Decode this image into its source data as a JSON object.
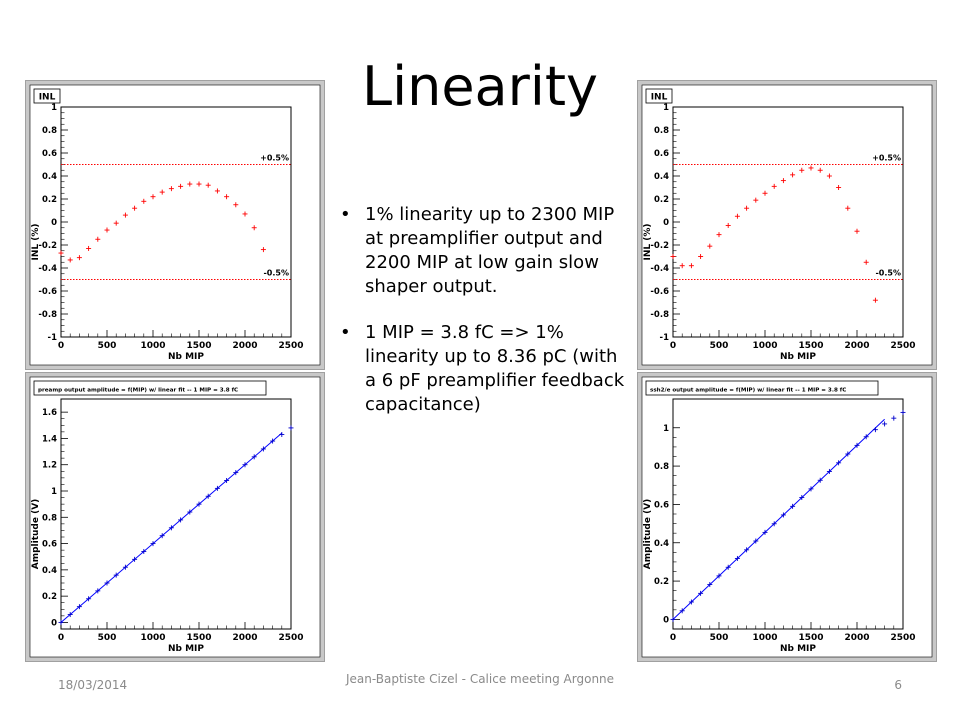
{
  "slide": {
    "title": "Linearity",
    "bullets": [
      "1% linearity up to 2300 MIP at preamplifier output and 2200 MIP at low gain slow shaper output.",
      "1 MIP = 3.8 fC => 1% linearity up to 8.36 pC (with a 6 pF preamplifier feedback capacitance)"
    ],
    "footer": {
      "date": "18/03/2014",
      "center": "Jean-Baptiste Cizel - Calice meeting Argonne",
      "page": "6"
    }
  },
  "chart_data": [
    {
      "type": "scatter",
      "title": "INL",
      "xlabel": "Nb MIP",
      "ylabel": "INL (%)",
      "xlim": [
        0,
        2500
      ],
      "ylim": [
        -1,
        1
      ],
      "xticks": [
        0,
        500,
        1000,
        1500,
        2000,
        2500
      ],
      "yticks": [
        -1,
        -0.8,
        -0.6,
        -0.4,
        -0.2,
        0,
        0.2,
        0.4,
        0.6,
        0.8,
        1
      ],
      "ytick_labels": [
        "-1",
        "-0.8",
        "-0.6",
        "-0.4",
        "-0.2",
        "0",
        "0.2",
        "0.4",
        "0.6",
        "0.8",
        "1"
      ],
      "marker_color": "#ff0000",
      "line_color": "#ff0000",
      "hlines": [
        {
          "y": 0.5,
          "label": "+0.5%"
        },
        {
          "y": -0.5,
          "label": "-0.5%"
        }
      ],
      "x": [
        0,
        100,
        200,
        300,
        400,
        500,
        600,
        700,
        800,
        900,
        1000,
        1100,
        1200,
        1300,
        1400,
        1500,
        1600,
        1700,
        1800,
        1900,
        2000,
        2100,
        2200
      ],
      "y": [
        -0.27,
        -0.33,
        -0.31,
        -0.23,
        -0.15,
        -0.07,
        -0.01,
        0.06,
        0.12,
        0.18,
        0.22,
        0.26,
        0.29,
        0.31,
        0.33,
        0.33,
        0.32,
        0.27,
        0.22,
        0.15,
        0.07,
        -0.05,
        -0.24
      ]
    },
    {
      "type": "scatter",
      "title": "INL",
      "xlabel": "Nb MIP",
      "ylabel": "INL (%)",
      "xlim": [
        0,
        2500
      ],
      "ylim": [
        -1,
        1
      ],
      "xticks": [
        0,
        500,
        1000,
        1500,
        2000,
        2500
      ],
      "yticks": [
        -1,
        -0.8,
        -0.6,
        -0.4,
        -0.2,
        0,
        0.2,
        0.4,
        0.6,
        0.8,
        1
      ],
      "ytick_labels": [
        "-1",
        "-0.8",
        "-0.6",
        "-0.4",
        "-0.2",
        "0",
        "0.2",
        "0.4",
        "0.6",
        "0.8",
        "1"
      ],
      "marker_color": "#ff0000",
      "line_color": "#ff0000",
      "hlines": [
        {
          "y": 0.5,
          "label": "+0.5%"
        },
        {
          "y": -0.5,
          "label": "-0.5%"
        }
      ],
      "x": [
        0,
        100,
        200,
        300,
        400,
        500,
        600,
        700,
        800,
        900,
        1000,
        1100,
        1200,
        1300,
        1400,
        1500,
        1600,
        1700,
        1800,
        1900,
        2000,
        2100,
        2200
      ],
      "y": [
        -0.3,
        -0.38,
        -0.38,
        -0.3,
        -0.21,
        -0.11,
        -0.03,
        0.05,
        0.12,
        0.19,
        0.25,
        0.31,
        0.36,
        0.41,
        0.45,
        0.47,
        0.45,
        0.4,
        0.3,
        0.12,
        -0.08,
        -0.35,
        -0.68
      ]
    },
    {
      "type": "scatter",
      "title": "preamp output amplitude = f(MIP) w/ linear fit -- 1 MIP = 3.8 fC",
      "xlabel": "Nb MIP",
      "ylabel": "Amplitude (V)",
      "xlim": [
        0,
        2500
      ],
      "ylim": [
        -0.05,
        1.7
      ],
      "xticks": [
        0,
        500,
        1000,
        1500,
        2000,
        2500
      ],
      "yticks": [
        0,
        0.2,
        0.4,
        0.6,
        0.8,
        1,
        1.2,
        1.4,
        1.6
      ],
      "ytick_labels": [
        "0",
        "0.2",
        "0.4",
        "0.6",
        "0.8",
        "1",
        "1.2",
        "1.4",
        "1.6"
      ],
      "marker_color": "#0000cc",
      "line_color": "#0000ff",
      "fit": {
        "slope": 0.0006,
        "intercept": 0,
        "x_range": [
          0,
          2400
        ]
      },
      "x": [
        0,
        100,
        200,
        300,
        400,
        500,
        600,
        700,
        800,
        900,
        1000,
        1100,
        1200,
        1300,
        1400,
        1500,
        1600,
        1700,
        1800,
        1900,
        2000,
        2100,
        2200,
        2300,
        2400,
        2500
      ],
      "y": [
        0,
        0.06,
        0.12,
        0.18,
        0.24,
        0.3,
        0.36,
        0.42,
        0.48,
        0.54,
        0.6,
        0.66,
        0.72,
        0.78,
        0.84,
        0.9,
        0.96,
        1.02,
        1.08,
        1.14,
        1.2,
        1.26,
        1.32,
        1.38,
        1.43,
        1.48
      ]
    },
    {
      "type": "scatter",
      "title": "ssh2/e output amplitude = f(MIP) w/ linear fit -- 1 MIP = 3.8 fC",
      "xlabel": "Nb MIP",
      "ylabel": "Amplitude (V)",
      "xlim": [
        0,
        2500
      ],
      "ylim": [
        -0.05,
        1.15
      ],
      "xticks": [
        0,
        500,
        1000,
        1500,
        2000,
        2500
      ],
      "yticks": [
        0,
        0.2,
        0.4,
        0.6,
        0.8,
        1
      ],
      "ytick_labels": [
        "0",
        "0.2",
        "0.4",
        "0.6",
        "0.8",
        "1"
      ],
      "marker_color": "#0000cc",
      "line_color": "#0000ff",
      "fit": {
        "slope": 0.000454,
        "intercept": 0,
        "x_range": [
          0,
          2300
        ]
      },
      "x": [
        0,
        100,
        200,
        300,
        400,
        500,
        600,
        700,
        800,
        900,
        1000,
        1100,
        1200,
        1300,
        1400,
        1500,
        1600,
        1700,
        1800,
        1900,
        2000,
        2100,
        2200,
        2300,
        2400,
        2500
      ],
      "y": [
        0,
        0.045,
        0.091,
        0.136,
        0.182,
        0.227,
        0.272,
        0.318,
        0.363,
        0.409,
        0.454,
        0.499,
        0.545,
        0.59,
        0.636,
        0.681,
        0.726,
        0.772,
        0.817,
        0.863,
        0.908,
        0.953,
        0.99,
        1.02,
        1.05,
        1.08
      ]
    }
  ]
}
